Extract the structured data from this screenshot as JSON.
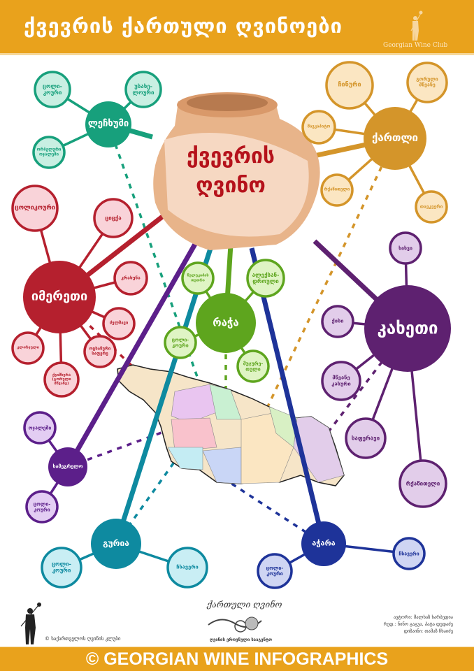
{
  "header": {
    "title": "ქვევრის ქართული ღვინოები",
    "club_name": "Georgian Wine Club"
  },
  "center": {
    "line1": "ქვევრის",
    "line2": "ღვინო",
    "text_color": "#b5121b",
    "jug_color": "#e8b48a"
  },
  "regions": [
    {
      "name": "ლეჩხუმი",
      "color": "#17a07c",
      "light": "#c8efe2",
      "varieties": [
        "ცოლი-კოური",
        "უსახე-ლოური",
        "ორბელური ოჯალეში"
      ]
    },
    {
      "name": "ქართლი",
      "color": "#d4952a",
      "light": "#fbe6c2",
      "varieties": [
        "ჩინური",
        "გორული მწვანე",
        "შავკაპიტო",
        "რქაწითელი",
        "თავკვერი"
      ]
    },
    {
      "name": "იმერეთი",
      "color": "#b5202e",
      "light": "#f9d3d9",
      "varieties": [
        "ცოლიკოური",
        "ციცქა",
        "კრახუნა",
        "ძელშავი",
        "ოცხანური საფერე",
        "ქვიშხურა (გორული მწვანე)",
        "კლარჯული"
      ]
    },
    {
      "name": "რაჭა",
      "color": "#5ea51e",
      "light": "#dff4c4",
      "varieties": [
        "წულუკიძის თეთრა",
        "ალექსან-დროული",
        "მუჯურე-თული",
        "ცოლი-კოური"
      ]
    },
    {
      "name": "კახეთი",
      "color": "#5e2170",
      "light": "#e2cdea",
      "varieties": [
        "ხიხვი",
        "ქისი",
        "მწვანე კახური",
        "საფერავი",
        "რქაწითელი"
      ]
    },
    {
      "name": "სამეგრელო",
      "color": "#5c1f8a",
      "light": "#e3cdf3",
      "varieties": [
        "ოჯალეში",
        "ცოლი-კოური"
      ]
    },
    {
      "name": "გურია",
      "color": "#0e8aa0",
      "light": "#c9eef4",
      "varieties": [
        "ცოლი-კოური",
        "ჩხავერი"
      ]
    },
    {
      "name": "აჭარა",
      "color": "#1e3399",
      "light": "#cfd5f3",
      "varieties": [
        "ცოლი-კოური",
        "ჩხავერი"
      ]
    }
  ],
  "footer": {
    "copyright_club": "© საქართველოს ღვინის კლუბი",
    "agency_logo_text": "ქართული ღვინო",
    "agency_name": "ღვინის ეროვნული სააგენტო",
    "credits": [
      "ავტორი: მალხაზ ხარბედია",
      "რედ.: ნინო გაგუა, პატა დუდაძე",
      "დიზაინი: თამაზ ჩხაიძე"
    ],
    "banner": "© GEORGIAN WINE INFOGRAPHICS"
  },
  "colors": {
    "accent": "#e9a21c"
  }
}
